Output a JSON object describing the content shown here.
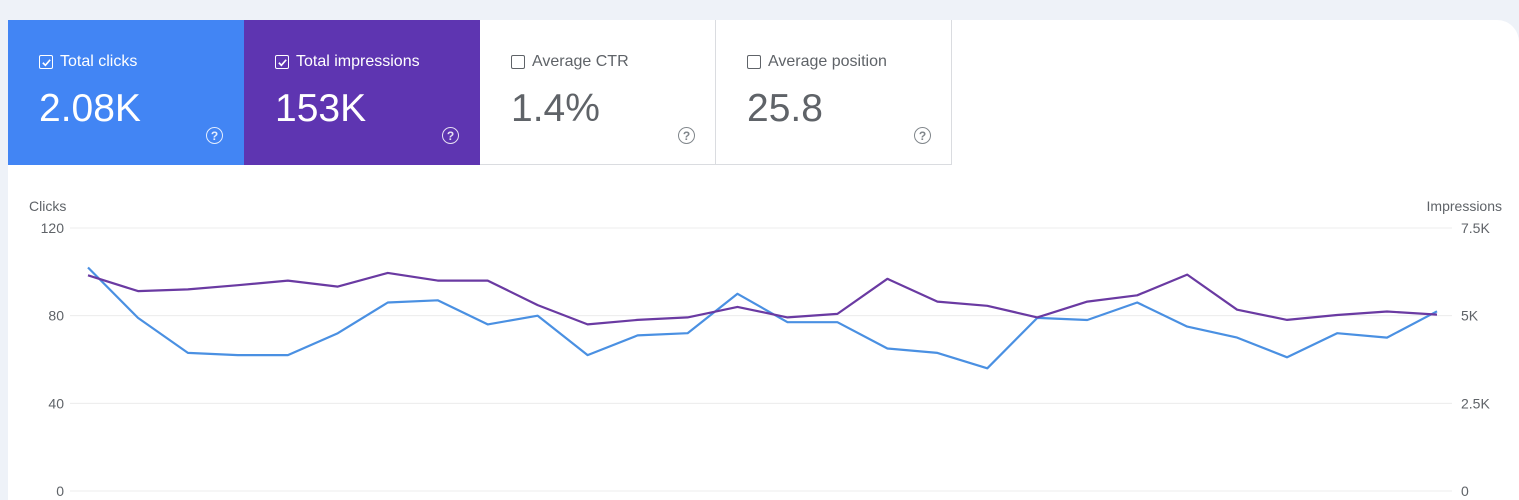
{
  "metrics": [
    {
      "label": "Total clicks",
      "value": "2.08K",
      "checked": true,
      "color": "#4285f4"
    },
    {
      "label": "Total impressions",
      "value": "153K",
      "checked": true,
      "color": "#5e35b1"
    },
    {
      "label": "Average CTR",
      "value": "1.4%",
      "checked": false
    },
    {
      "label": "Average position",
      "value": "25.8",
      "checked": false
    }
  ],
  "help_glyph": "?",
  "chart_data": {
    "type": "line",
    "y_left_label": "Clicks",
    "y_right_label": "Impressions",
    "y_left_ticks": [
      "120",
      "80",
      "40",
      "0"
    ],
    "y_right_ticks": [
      "7.5K",
      "5K",
      "2.5K",
      "0"
    ],
    "y_left_range": [
      0,
      120
    ],
    "y_right_range": [
      0,
      7500
    ],
    "grid": true,
    "series": [
      {
        "name": "Total clicks",
        "axis": "left",
        "color": "#4a90e2",
        "values": [
          102,
          79,
          63,
          62,
          62,
          72,
          86,
          87,
          76,
          80,
          62,
          71,
          72,
          90,
          77,
          77,
          65,
          63,
          56,
          79,
          78,
          86,
          75,
          70,
          61,
          72,
          70,
          82
        ]
      },
      {
        "name": "Total impressions",
        "axis": "right",
        "color": "#6a3aa2",
        "values": [
          6150,
          5700,
          5750,
          5870,
          6000,
          5830,
          6220,
          6000,
          6000,
          5300,
          4750,
          4880,
          4950,
          5250,
          4950,
          5050,
          6050,
          5400,
          5280,
          4950,
          5400,
          5580,
          6170,
          5170,
          4880,
          5020,
          5120,
          5030
        ]
      }
    ]
  }
}
